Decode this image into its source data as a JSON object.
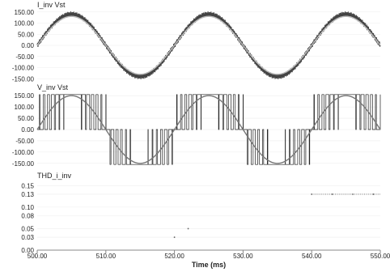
{
  "chart_data": [
    {
      "type": "line",
      "title": "I_inv  Vst",
      "series": [
        {
          "name": "I_inv",
          "color": "#444444",
          "shape": "sine",
          "amplitude": 140,
          "period_ms": 20,
          "phase_ms": 0,
          "ripple": 12
        },
        {
          "name": "Vst",
          "color": "#bbbbbb",
          "shape": "sine",
          "amplitude": 130,
          "period_ms": 20,
          "phase_ms": 0
        }
      ],
      "ylim": [
        -160,
        160
      ],
      "ytick_values": [
        150,
        100,
        50,
        0,
        -50,
        -100,
        -150
      ],
      "ytick_labels": [
        "150.00",
        "100.00",
        "50.00",
        "0.00",
        "-50.00",
        "-100.00",
        "-150.00"
      ]
    },
    {
      "type": "line",
      "title": "V_inv  Vst",
      "series": [
        {
          "name": "V_inv",
          "color": "#222222",
          "shape": "pwm",
          "level": 155,
          "period_ms": 20,
          "phase_ms": 0
        },
        {
          "name": "Vst",
          "color": "#777777",
          "shape": "sine",
          "amplitude": 150,
          "period_ms": 20,
          "phase_ms": 0
        }
      ],
      "ylim": [
        -165,
        165
      ],
      "ytick_values": [
        150,
        100,
        50,
        0,
        -50,
        -100,
        -150
      ],
      "ytick_labels": [
        "150.00",
        "100.00",
        "50.00",
        "0.00",
        "-50.00",
        "-100.00",
        "-150.00"
      ]
    },
    {
      "type": "line",
      "title": "THD_i_inv",
      "series": [
        {
          "name": "THD_i_inv",
          "color": "#666666",
          "shape": "dots",
          "points": [
            [
              522,
              0.05
            ],
            [
              520,
              0.03
            ],
            [
              540,
              0.13
            ],
            [
              543,
              0.13
            ],
            [
              546,
              0.13
            ],
            [
              549,
              0.13
            ]
          ]
        }
      ],
      "ylim": [
        0,
        0.16
      ],
      "ytick_values": [
        0.15,
        0.13,
        0.1,
        0.08,
        0.05,
        0.03,
        0.0
      ],
      "ytick_labels": [
        "0.15",
        "0.13",
        "0.10",
        "0.08",
        "0.05",
        "0.03",
        "0.00"
      ]
    }
  ],
  "x_axis": {
    "label": "Time (ms)",
    "xlim": [
      500,
      550
    ],
    "tick_values": [
      500,
      510,
      520,
      530,
      540,
      550
    ],
    "tick_labels": [
      "500.00",
      "510.00",
      "520.00",
      "530.00",
      "540.00",
      "550.00"
    ]
  }
}
